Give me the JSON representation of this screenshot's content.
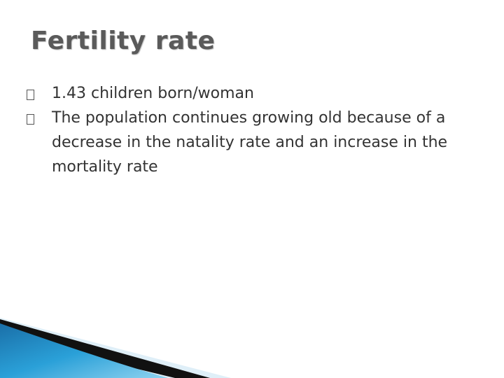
{
  "slide": {
    "title": "Fertility rate",
    "bullets": [
      "1.43 children born/woman",
      "The population  continues growing old because of a decrease in the natality rate and an increase in the mortality rate"
    ]
  }
}
